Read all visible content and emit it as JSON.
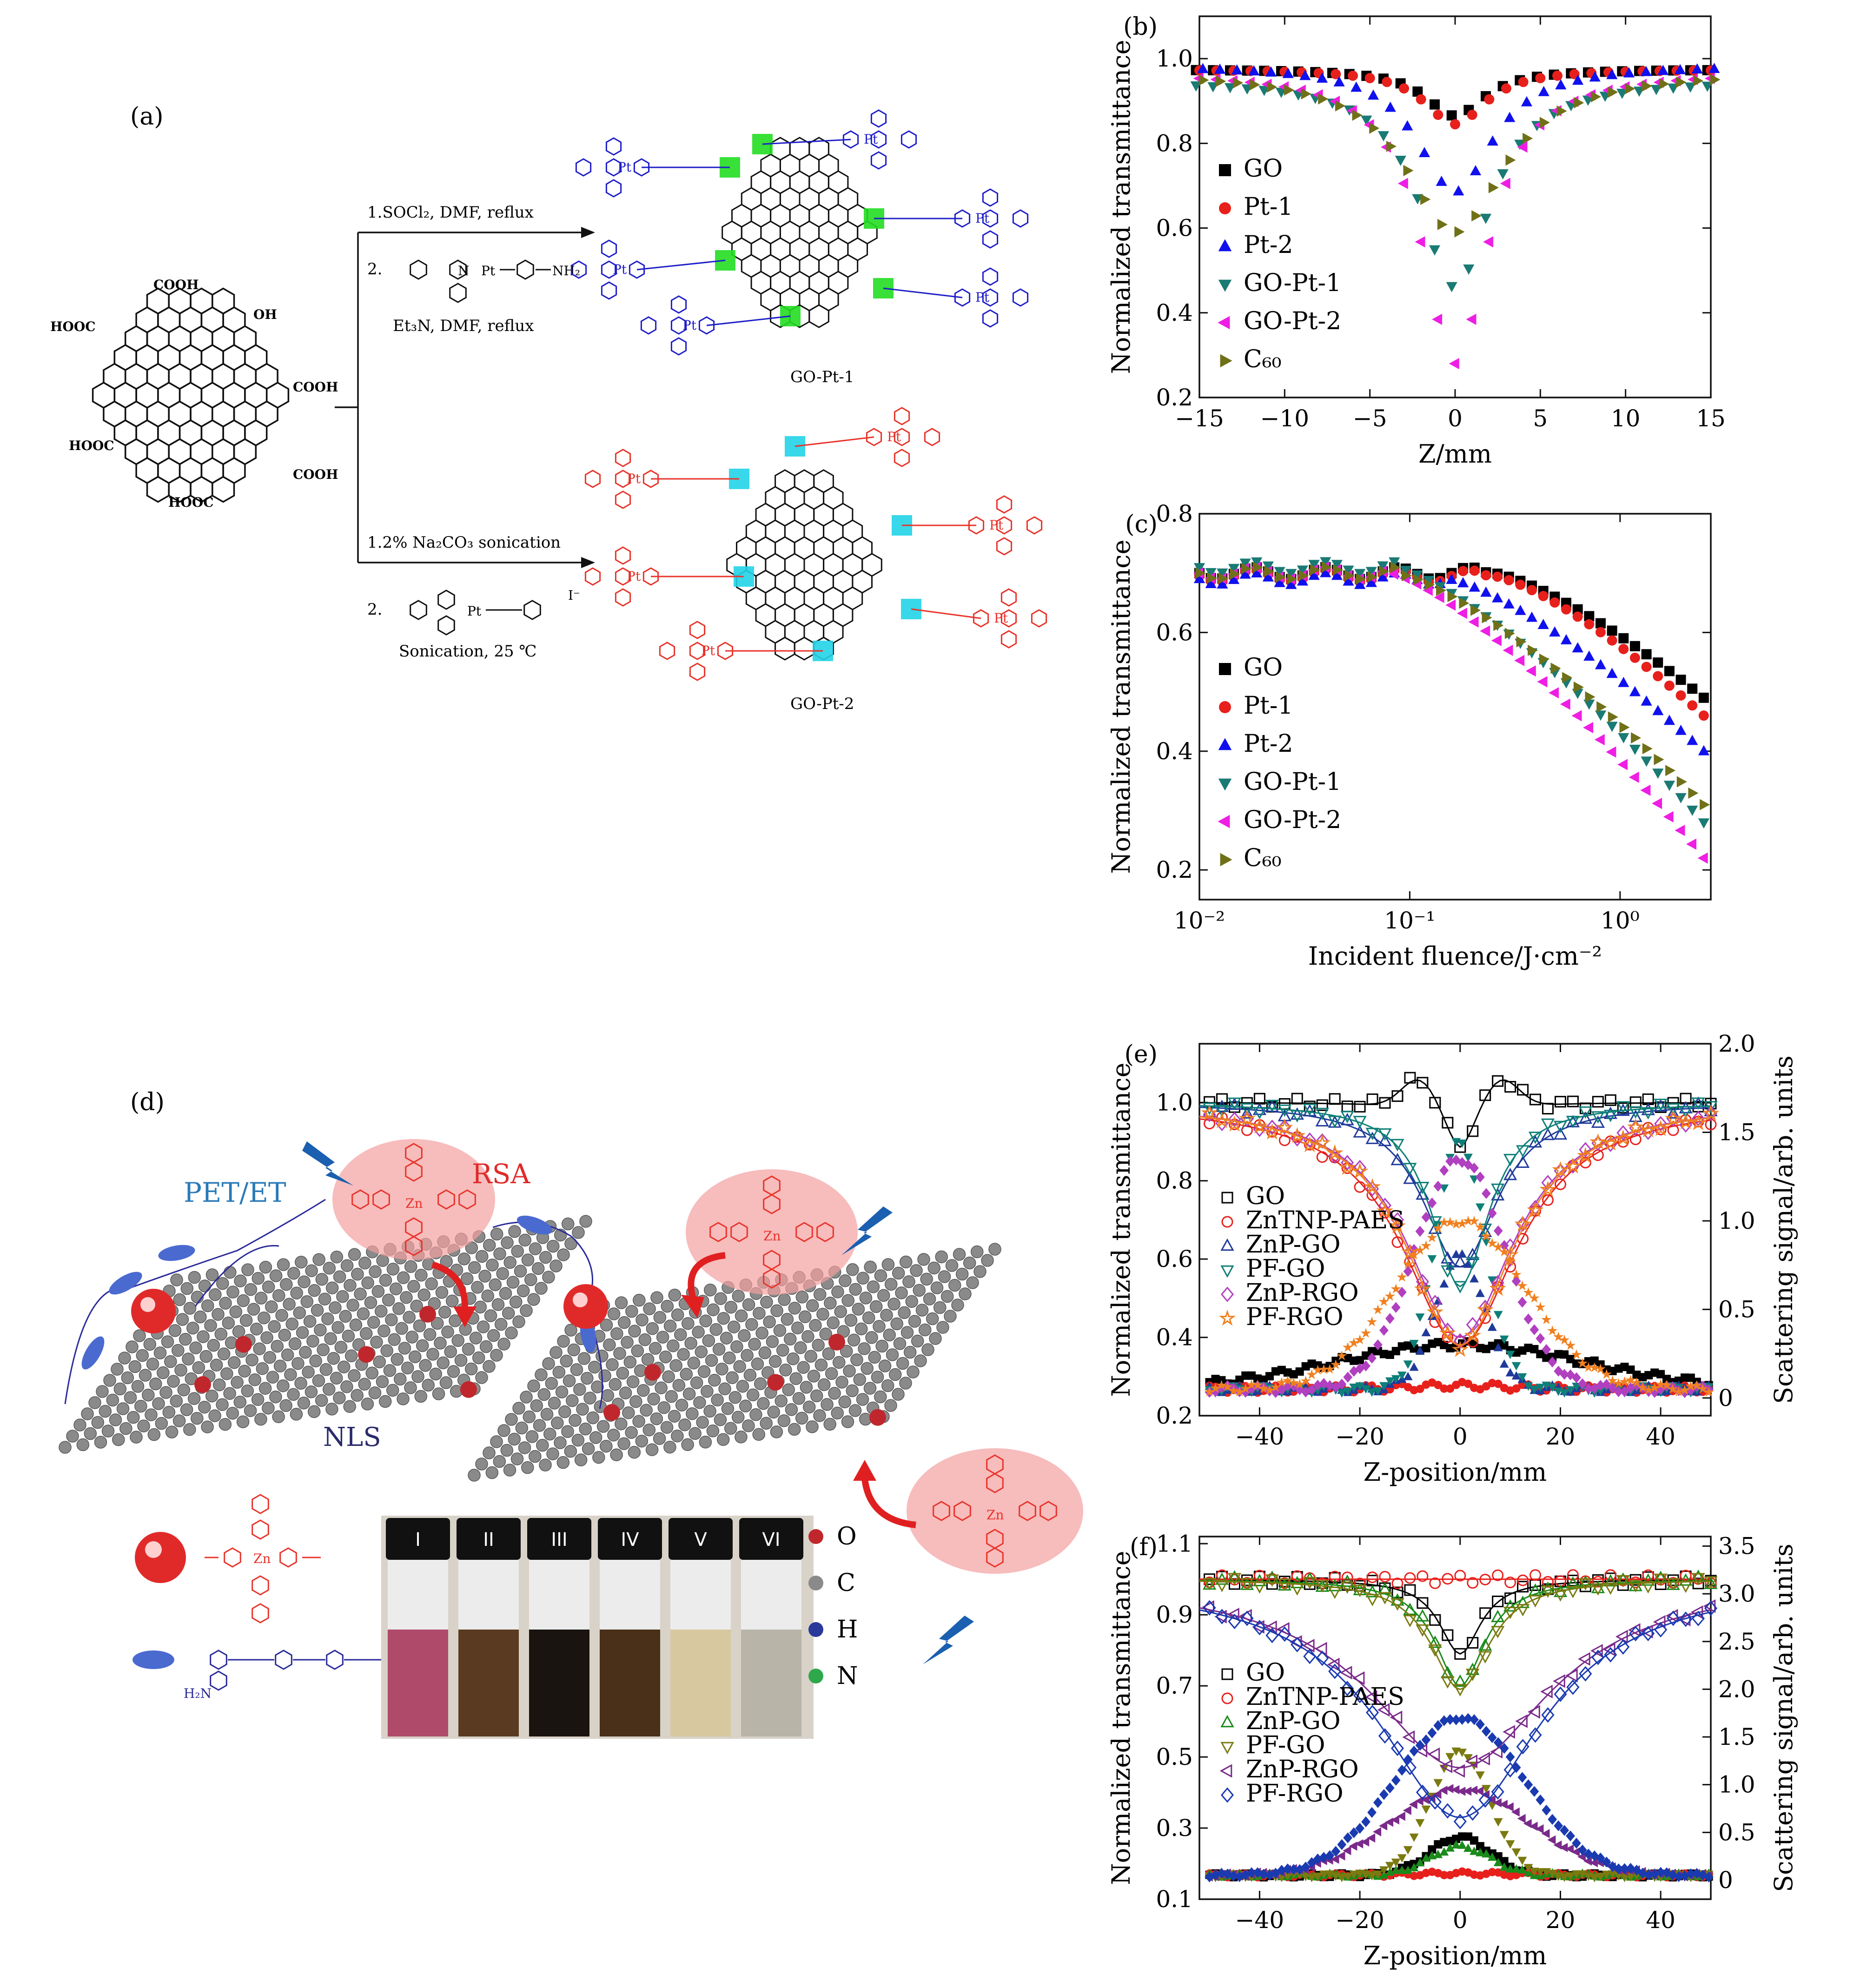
{
  "panels": {
    "a": {
      "label": "(a)",
      "gogroups": [
        "COOH",
        "HOOC",
        "OH",
        "COOH",
        "HOOC",
        "COOH",
        "HOOC"
      ],
      "step1_line1": "1.SOCl₂, DMF, reflux",
      "step1_line2": "2.",
      "step1_amine": "NH₂",
      "step1_line3": "Et₃N, DMF, reflux",
      "product1": "GO-Pt-1",
      "step2_line1": "1.2% Na₂CO₃ sonication",
      "step2_line2": "2.",
      "step2_line3": "Sonication, 25 ℃",
      "product2": "GO-Pt-2",
      "pt": "Pt",
      "n": "N",
      "nh": "NH",
      "coo": "COO",
      "iodide": "I⁻"
    },
    "d": {
      "label": "(d)",
      "pet": "PET/ET",
      "rsa": "RSA",
      "nls": "NLS",
      "zn": "Zn",
      "h2n": "H₂N",
      "vials": [
        "I",
        "II",
        "III",
        "IV",
        "V",
        "VI"
      ],
      "legend": [
        "O",
        "C",
        "H",
        "N"
      ]
    }
  },
  "colors": {
    "blue_struct": "#1f1fc8",
    "red_struct": "#e8332a",
    "green_hl": "#22dd22",
    "cyan_hl": "#22d4e8",
    "O": "#c0272d",
    "C": "#8a8a8a",
    "H": "#2a3a9a",
    "N": "#2ea84a"
  },
  "chart_data": [
    {
      "id": "b",
      "type": "scatter",
      "label": "(b)",
      "xlabel": "Z/mm",
      "ylabel": "Normalized transmittance",
      "xlim": [
        -15,
        15
      ],
      "ylim": [
        0.2,
        1.1
      ],
      "xticks": [
        -15,
        -10,
        -5,
        0,
        5,
        10,
        15
      ],
      "xticklabels": [
        "−15",
        "−10",
        "−5",
        "0",
        "5",
        "10",
        "15"
      ],
      "yticks": [
        0.2,
        0.4,
        0.6,
        0.8,
        1.0
      ],
      "yticklabels": [
        "0.2",
        "0.4",
        "0.6",
        "0.8",
        "1.0"
      ],
      "legend_pos": "center-left",
      "series": [
        {
          "name": "GO",
          "marker": "square",
          "color": "#000000",
          "dip": 0.11,
          "width": 2.5,
          "base": 0.975
        },
        {
          "name": "Pt-1",
          "marker": "circle",
          "color": "#e8201c",
          "dip": 0.13,
          "width": 2.6,
          "base": 0.975
        },
        {
          "name": "Pt-2",
          "marker": "triangle-up",
          "color": "#1010ee",
          "dip": 0.3,
          "width": 3.2,
          "base": 0.985
        },
        {
          "name": "GO-Pt-1",
          "marker": "triangle-down",
          "color": "#1a7a74",
          "dip": 0.49,
          "width": 3.0,
          "base": 0.95
        },
        {
          "name": "GO-Pt-2",
          "marker": "triangle-left",
          "color": "#ee1ee4",
          "dip": 0.69,
          "width": 2.8,
          "base": 0.97
        },
        {
          "name": "C60",
          "display": "C₆₀",
          "marker": "triangle-right",
          "color": "#707018",
          "dip": 0.38,
          "width": 4.2,
          "base": 0.97
        }
      ]
    },
    {
      "id": "c",
      "type": "scatter",
      "label": "(c)",
      "xlabel": "Incident fluence/J·cm⁻²",
      "ylabel": "Normalized transmittance",
      "xscale": "log",
      "xlim": [
        0.01,
        2.7
      ],
      "ylim": [
        0.15,
        0.8
      ],
      "xticks": [
        0.01,
        0.1,
        1
      ],
      "xticklabels": [
        "10⁻²",
        "10⁻¹",
        "10⁰"
      ],
      "yticks": [
        0.2,
        0.4,
        0.6,
        0.8
      ],
      "yticklabels": [
        "0.2",
        "0.4",
        "0.6",
        "0.8"
      ],
      "legend_pos": "bottom-left",
      "series": [
        {
          "name": "GO",
          "marker": "square",
          "color": "#000000",
          "start": 0.7,
          "onset": 0.25,
          "end": 0.49
        },
        {
          "name": "Pt-1",
          "marker": "circle",
          "color": "#e8201c",
          "start": 0.695,
          "onset": 0.25,
          "end": 0.46
        },
        {
          "name": "Pt-2",
          "marker": "triangle-up",
          "color": "#1010ee",
          "start": 0.69,
          "onset": 0.15,
          "end": 0.4
        },
        {
          "name": "GO-Pt-1",
          "marker": "triangle-down",
          "color": "#1a7a74",
          "start": 0.71,
          "onset": 0.085,
          "end": 0.28
        },
        {
          "name": "GO-Pt-2",
          "marker": "triangle-left",
          "color": "#ee1ee4",
          "start": 0.7,
          "onset": 0.08,
          "end": 0.22
        },
        {
          "name": "C60",
          "display": "C₆₀",
          "marker": "triangle-right",
          "color": "#707018",
          "start": 0.7,
          "onset": 0.085,
          "end": 0.31
        }
      ]
    },
    {
      "id": "e",
      "type": "scatter",
      "label": "(e)",
      "xlabel": "Z-position/mm",
      "ylabel": "Normalized transmittance",
      "y2label": "Scattering signal/arb. units",
      "xlim": [
        -52,
        50
      ],
      "ylim": [
        0.2,
        1.15
      ],
      "y2lim": [
        -0.1,
        2.0
      ],
      "xticks": [
        -40,
        -20,
        0,
        20,
        40
      ],
      "xticklabels": [
        "−40",
        "−20",
        "0",
        "20",
        "40"
      ],
      "yticks": [
        0.2,
        0.4,
        0.6,
        0.8,
        1.0
      ],
      "yticklabels": [
        "0.2",
        "0.4",
        "0.6",
        "0.8",
        "1.0"
      ],
      "y2ticks": [
        0,
        0.5,
        1.0,
        1.5,
        2.0
      ],
      "y2ticklabels": [
        "0",
        "0.5",
        "1.0",
        "1.5",
        "2.0"
      ],
      "legend_pos": "center-left",
      "series": [
        {
          "name": "GO",
          "marker": "square",
          "color": "#000000",
          "dip": 0.12,
          "width": 4,
          "hump": 0.08,
          "scat": 0.25,
          "scatw": 25
        },
        {
          "name": "ZnTNP-PAES",
          "marker": "circle",
          "color": "#e8201c",
          "dip": 0.62,
          "width": 14,
          "scat": 0.02,
          "scatw": 10
        },
        {
          "name": "ZnP-GO",
          "marker": "triangle-up",
          "color": "#1f3a9a",
          "dip": 0.42,
          "width": 9,
          "scat": 0.75,
          "scatw": 5
        },
        {
          "name": "PF-GO",
          "marker": "triangle-down",
          "color": "#0e7f78",
          "dip": 0.47,
          "width": 7,
          "scat": 1.4,
          "scatw": 5
        },
        {
          "name": "ZnP-RGO",
          "marker": "diamond",
          "color": "#b040c0",
          "dip": 0.6,
          "width": 13,
          "scat": 1.3,
          "scatw": 9
        },
        {
          "name": "PF-RGO",
          "marker": "star",
          "color": "#f08020",
          "dip": 0.62,
          "width": 13,
          "scat": 0.95,
          "scatw": 13
        }
      ]
    },
    {
      "id": "f",
      "type": "scatter",
      "label": "(f)",
      "xlabel": "Z-position/mm",
      "ylabel": "Normalized transmittance",
      "y2label": "Scattering signal/arb. units",
      "xlim": [
        -52,
        50
      ],
      "ylim": [
        0.1,
        1.12
      ],
      "y2lim": [
        -0.2,
        3.6
      ],
      "xticks": [
        -40,
        -20,
        0,
        20,
        40
      ],
      "xticklabels": [
        "−40",
        "−20",
        "0",
        "20",
        "40"
      ],
      "yticks": [
        0.1,
        0.3,
        0.5,
        0.7,
        0.9,
        1.1
      ],
      "yticklabels": [
        "0.1",
        "0.3",
        "0.5",
        "0.7",
        "0.9",
        "1.1"
      ],
      "y2ticks": [
        0,
        0.5,
        1.0,
        1.5,
        2.0,
        2.5,
        3.0,
        3.5
      ],
      "y2ticklabels": [
        "0",
        "0.5",
        "1.0",
        "1.5",
        "2.0",
        "2.5",
        "3.0",
        "3.5"
      ],
      "legend_pos": "center-left",
      "series": [
        {
          "name": "GO",
          "marker": "square",
          "color": "#000000",
          "dip": 0.21,
          "width": 5,
          "scat": 0.4,
          "scatw": 6
        },
        {
          "name": "ZnTNP-PAES",
          "marker": "circle",
          "color": "#e8201c",
          "dip": 0.0,
          "width": 10,
          "scat": 0.02,
          "scatw": 10
        },
        {
          "name": "ZnP-GO",
          "marker": "triangle-up",
          "color": "#1a8a1a",
          "dip": 0.3,
          "width": 6,
          "scat": 0.3,
          "scatw": 6
        },
        {
          "name": "PF-GO",
          "marker": "triangle-down",
          "color": "#7a7a10",
          "dip": 0.31,
          "width": 7,
          "scat": 1.3,
          "scatw": 6
        },
        {
          "name": "ZnP-RGO",
          "marker": "triangle-left",
          "color": "#7a2a8a",
          "dip": 0.53,
          "width": 22,
          "scat": 0.9,
          "scatw": 14
        },
        {
          "name": "PF-RGO",
          "marker": "diamond",
          "color": "#1a3ab0",
          "dip": 0.67,
          "width": 20,
          "scat": 1.65,
          "scatw": 13
        }
      ]
    }
  ]
}
